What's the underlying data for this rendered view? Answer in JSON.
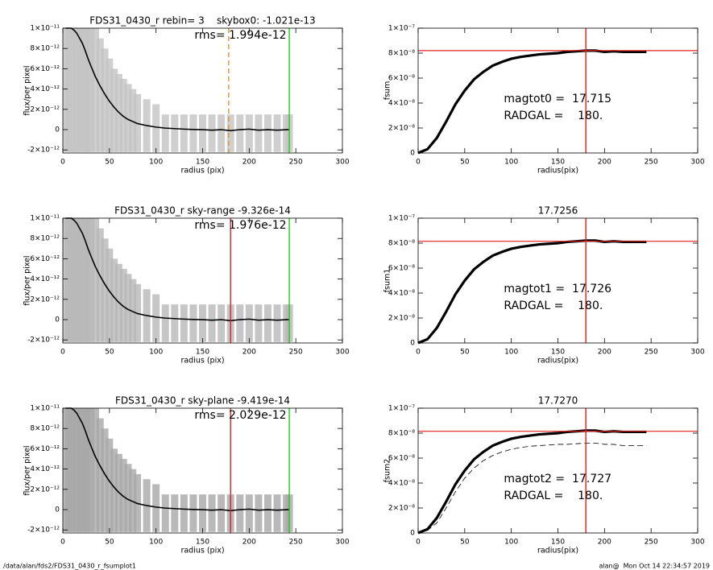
{
  "chart_data": [
    {
      "type": "profile",
      "title": "FDS31_0430_r rebin= 3    skybox0: -1.021e-13",
      "annotations": [
        "rms= 1.994e-12"
      ],
      "xlabel": "radius (pix)",
      "ylabel": "flux/per pixel",
      "xlim": [
        0,
        300
      ],
      "xticks": [
        0,
        50,
        100,
        150,
        200,
        250,
        300
      ],
      "ylim": [
        -2.3e-12,
        1e-11
      ],
      "yticks": [
        {
          "value": -2e-12,
          "label": "-2×10⁻¹²"
        },
        0,
        {
          "value": 2e-12,
          "label": "2×10⁻¹²"
        },
        {
          "value": 4e-12,
          "label": "4×10⁻¹²"
        },
        {
          "value": 6e-12,
          "label": "6×10⁻¹²"
        },
        {
          "value": 8e-12,
          "label": "8×10⁻¹²"
        },
        {
          "value": 1e-11,
          "label": "1×10⁻¹¹"
        }
      ],
      "x": [
        3,
        6,
        9,
        12,
        15,
        18,
        21,
        24,
        27,
        30,
        35,
        40,
        45,
        50,
        55,
        60,
        65,
        70,
        75,
        80,
        90,
        100,
        110,
        120,
        130,
        140,
        150,
        160,
        170,
        180,
        190,
        200,
        210,
        220,
        230,
        240,
        243
      ],
      "profile": [
        1e-11,
        1e-11,
        1e-11,
        9.8e-12,
        9.5e-12,
        9e-12,
        8.5e-12,
        7.8e-12,
        7e-12,
        6.3e-12,
        5.2e-12,
        4.3e-12,
        3.5e-12,
        2.8e-12,
        2.2e-12,
        1.7e-12,
        1.3e-12,
        1e-12,
        8e-13,
        6e-13,
        4e-13,
        2.5e-13,
        1.5e-13,
        1e-13,
        5e-14,
        2e-14,
        0,
        -5e-14,
        0,
        -1e-13,
        0,
        5e-14,
        -5e-14,
        0,
        -5e-14,
        0,
        0
      ],
      "band_upper": [
        1e-11,
        1e-11,
        1e-11,
        1e-11,
        1e-11,
        1e-11,
        1e-11,
        1e-11,
        1e-11,
        1e-11,
        1e-11,
        9e-12,
        8e-12,
        7e-12,
        6e-12,
        5.5e-12,
        5e-12,
        4.5e-12,
        4e-12,
        3.5e-12,
        3e-12,
        2.5e-12,
        1.5e-12,
        1.5e-12,
        1.5e-12,
        1.5e-12,
        1.5e-12,
        1.5e-12,
        1.5e-12,
        1.5e-12,
        1.5e-12,
        1.5e-12,
        1.5e-12,
        1.5e-12,
        1.5e-12,
        1.5e-12,
        1.5e-12
      ],
      "band_lower": [
        -2.2e-12,
        -2.2e-12,
        -2.2e-12,
        -2.2e-12,
        -2.2e-12,
        -2.2e-12,
        -2.2e-12,
        -2.2e-12,
        -2.2e-12,
        -2.2e-12,
        -2.2e-12,
        -2.2e-12,
        -2.2e-12,
        -2.2e-12,
        -2.2e-12,
        -2.2e-12,
        -2.2e-12,
        -2.2e-12,
        -2.2e-12,
        -2.2e-12,
        -2.2e-12,
        -2.2e-12,
        -2.2e-12,
        -2.2e-12,
        -2.2e-12,
        -2.2e-12,
        -2.2e-12,
        -2.2e-12,
        -2.2e-12,
        -2.2e-12,
        -2.2e-12,
        -2.2e-12,
        -2.2e-12,
        -2.2e-12,
        -2.2e-12,
        -2.2e-12,
        -2.2e-12
      ],
      "band_color": "#c4c4c4",
      "color": "#000000",
      "vlines": [
        {
          "value": 178,
          "color": "#e8902a",
          "dashed": true
        },
        {
          "value": 243,
          "color": "#22cc22"
        }
      ]
    },
    {
      "type": "fsum",
      "ylabel": "fsum",
      "xlabel": "radius(pix)",
      "annotations": [
        "magtot0 =  17.715",
        "RADGAL =    180."
      ],
      "xlim": [
        0,
        300
      ],
      "xticks": [
        0,
        50,
        100,
        150,
        200,
        250,
        300
      ],
      "ylim": [
        0,
        1e-07
      ],
      "yticks": [
        0,
        {
          "value": 2e-08,
          "label": "2×10⁻⁸"
        },
        {
          "value": 4e-08,
          "label": "4×10⁻⁸"
        },
        {
          "value": 6e-08,
          "label": "6×10⁻⁸"
        },
        {
          "value": 8e-08,
          "label": "8×10⁻⁸"
        },
        {
          "value": 1e-07,
          "label": "1×10⁻⁷"
        }
      ],
      "x": [
        0,
        10,
        20,
        30,
        40,
        50,
        60,
        70,
        80,
        90,
        100,
        110,
        120,
        130,
        140,
        150,
        160,
        170,
        180,
        190,
        200,
        210,
        220,
        230,
        240,
        245
      ],
      "values": [
        0,
        3e-09,
        1.2e-08,
        2.5e-08,
        3.9e-08,
        5e-08,
        5.9e-08,
        6.5e-08,
        7e-08,
        7.3e-08,
        7.55e-08,
        7.7e-08,
        7.8e-08,
        7.9e-08,
        7.95e-08,
        8e-08,
        8.1e-08,
        8.15e-08,
        8.2e-08,
        8.2e-08,
        8.1e-08,
        8.15e-08,
        8.1e-08,
        8.1e-08,
        8.1e-08,
        8.1e-08
      ],
      "color": "#000000",
      "hline": 8.2e-08,
      "vline": 180,
      "line_color": "#e02020"
    },
    {
      "type": "profile",
      "title": "FDS31_0430_r sky-range -9.326e-14",
      "annotations": [
        "rms= 1.976e-12"
      ],
      "xlabel": "radius (pix)",
      "ylabel": "flux/per pixel",
      "xlim": [
        0,
        300
      ],
      "xticks": [
        0,
        50,
        100,
        150,
        200,
        250,
        300
      ],
      "ylim": [
        -2.3e-12,
        1e-11
      ],
      "yticks": [
        {
          "value": -2e-12,
          "label": "-2×10⁻¹²"
        },
        0,
        {
          "value": 2e-12,
          "label": "2×10⁻¹²"
        },
        {
          "value": 4e-12,
          "label": "4×10⁻¹²"
        },
        {
          "value": 6e-12,
          "label": "6×10⁻¹²"
        },
        {
          "value": 8e-12,
          "label": "8×10⁻¹²"
        },
        {
          "value": 1e-11,
          "label": "1×10⁻¹¹"
        }
      ],
      "x": [
        3,
        6,
        9,
        12,
        15,
        18,
        21,
        24,
        27,
        30,
        35,
        40,
        45,
        50,
        55,
        60,
        65,
        70,
        75,
        80,
        90,
        100,
        110,
        120,
        130,
        140,
        150,
        160,
        170,
        180,
        190,
        200,
        210,
        220,
        230,
        240,
        243
      ],
      "profile": [
        1e-11,
        1e-11,
        1e-11,
        9.8e-12,
        9.5e-12,
        9e-12,
        8.5e-12,
        7.8e-12,
        7e-12,
        6.3e-12,
        5.2e-12,
        4.3e-12,
        3.5e-12,
        2.8e-12,
        2.2e-12,
        1.7e-12,
        1.3e-12,
        1e-12,
        8e-13,
        6e-13,
        4e-13,
        2.5e-13,
        1.5e-13,
        1e-13,
        5e-14,
        2e-14,
        0,
        -5e-14,
        0,
        -1e-13,
        0,
        5e-14,
        -5e-14,
        0,
        -5e-14,
        0,
        0
      ],
      "band_upper": [
        1e-11,
        1e-11,
        1e-11,
        1e-11,
        1e-11,
        1e-11,
        1e-11,
        1e-11,
        1e-11,
        1e-11,
        1e-11,
        9e-12,
        8e-12,
        7e-12,
        6e-12,
        5.5e-12,
        5e-12,
        4.5e-12,
        4e-12,
        3.5e-12,
        3e-12,
        2.5e-12,
        1.5e-12,
        1.5e-12,
        1.5e-12,
        1.5e-12,
        1.5e-12,
        1.5e-12,
        1.5e-12,
        1.5e-12,
        1.5e-12,
        1.5e-12,
        1.5e-12,
        1.5e-12,
        1.5e-12,
        1.5e-12,
        1.5e-12
      ],
      "band_lower": [
        -2.2e-12,
        -2.2e-12,
        -2.2e-12,
        -2.2e-12,
        -2.2e-12,
        -2.2e-12,
        -2.2e-12,
        -2.2e-12,
        -2.2e-12,
        -2.2e-12,
        -2.2e-12,
        -2.2e-12,
        -2.2e-12,
        -2.2e-12,
        -2.2e-12,
        -2.2e-12,
        -2.2e-12,
        -2.2e-12,
        -2.2e-12,
        -2.2e-12,
        -2.2e-12,
        -2.2e-12,
        -2.2e-12,
        -2.2e-12,
        -2.2e-12,
        -2.2e-12,
        -2.2e-12,
        -2.2e-12,
        -2.2e-12,
        -2.2e-12,
        -2.2e-12,
        -2.2e-12,
        -2.2e-12,
        -2.2e-12,
        -2.2e-12,
        -2.2e-12,
        -2.2e-12
      ],
      "band_color": "#b8b8b8",
      "color": "#000000",
      "vlines": [
        {
          "value": 180,
          "color": "#d42020"
        },
        {
          "value": 243,
          "color": "#22cc22"
        }
      ]
    },
    {
      "type": "fsum",
      "title": "17.7256",
      "ylabel": "fsum1",
      "xlabel": "radius(pix)",
      "annotations": [
        "magtot1 =  17.726",
        "RADGAL =    180."
      ],
      "xlim": [
        0,
        300
      ],
      "xticks": [
        0,
        50,
        100,
        150,
        200,
        250,
        300
      ],
      "ylim": [
        0,
        1e-07
      ],
      "yticks": [
        0,
        {
          "value": 2e-08,
          "label": "2×10⁻⁸"
        },
        {
          "value": 4e-08,
          "label": "4×10⁻⁸"
        },
        {
          "value": 6e-08,
          "label": "6×10⁻⁸"
        },
        {
          "value": 8e-08,
          "label": "8×10⁻⁸"
        },
        {
          "value": 1e-07,
          "label": "1×10⁻⁷"
        }
      ],
      "x": [
        0,
        10,
        20,
        30,
        40,
        50,
        60,
        70,
        80,
        90,
        100,
        110,
        120,
        130,
        140,
        150,
        160,
        170,
        180,
        190,
        200,
        210,
        220,
        230,
        240,
        245
      ],
      "values": [
        0,
        3e-09,
        1.2e-08,
        2.5e-08,
        3.9e-08,
        5e-08,
        5.9e-08,
        6.5e-08,
        7e-08,
        7.3e-08,
        7.55e-08,
        7.7e-08,
        7.8e-08,
        7.9e-08,
        7.95e-08,
        8e-08,
        8.1e-08,
        8.15e-08,
        8.2e-08,
        8.2e-08,
        8.1e-08,
        8.15e-08,
        8.1e-08,
        8.1e-08,
        8.1e-08,
        8.1e-08
      ],
      "color": "#000000",
      "hline": 8.15e-08,
      "vline": 180,
      "line_color": "#e02020"
    },
    {
      "type": "profile",
      "title": "FDS31_0430_r sky-plane -9.419e-14",
      "annotations": [
        "rms= 2.029e-12"
      ],
      "xlabel": "radius (pix)",
      "ylabel": "flux/per pixel",
      "xlim": [
        0,
        300
      ],
      "xticks": [
        0,
        50,
        100,
        150,
        200,
        250,
        300
      ],
      "ylim": [
        -2.3e-12,
        1e-11
      ],
      "yticks": [
        {
          "value": -2e-12,
          "label": "-2×10⁻¹²"
        },
        0,
        {
          "value": 2e-12,
          "label": "2×10⁻¹²"
        },
        {
          "value": 4e-12,
          "label": "4×10⁻¹²"
        },
        {
          "value": 6e-12,
          "label": "6×10⁻¹²"
        },
        {
          "value": 8e-12,
          "label": "8×10⁻¹²"
        },
        {
          "value": 1e-11,
          "label": "1×10⁻¹¹"
        }
      ],
      "x": [
        3,
        6,
        9,
        12,
        15,
        18,
        21,
        24,
        27,
        30,
        35,
        40,
        45,
        50,
        55,
        60,
        65,
        70,
        75,
        80,
        90,
        100,
        110,
        120,
        130,
        140,
        150,
        160,
        170,
        180,
        190,
        200,
        210,
        220,
        230,
        240,
        243
      ],
      "profile": [
        1e-11,
        1e-11,
        1e-11,
        9.8e-12,
        9.5e-12,
        9e-12,
        8.5e-12,
        7.8e-12,
        7e-12,
        6.3e-12,
        5.2e-12,
        4.3e-12,
        3.5e-12,
        2.8e-12,
        2.2e-12,
        1.7e-12,
        1.3e-12,
        1e-12,
        8e-13,
        6e-13,
        4e-13,
        2.5e-13,
        1.5e-13,
        1e-13,
        5e-14,
        2e-14,
        0,
        -5e-14,
        0,
        -1e-13,
        0,
        5e-14,
        -5e-14,
        0,
        -5e-14,
        0,
        0
      ],
      "band_upper": [
        1e-11,
        1e-11,
        1e-11,
        1e-11,
        1e-11,
        1e-11,
        1e-11,
        1e-11,
        1e-11,
        1e-11,
        1e-11,
        9e-12,
        8e-12,
        7e-12,
        6e-12,
        5.5e-12,
        5e-12,
        4.5e-12,
        4e-12,
        3.5e-12,
        3e-12,
        2.5e-12,
        1.5e-12,
        1.5e-12,
        1.5e-12,
        1.5e-12,
        1.5e-12,
        1.5e-12,
        1.5e-12,
        1.5e-12,
        1.5e-12,
        1.5e-12,
        1.5e-12,
        1.5e-12,
        1.5e-12,
        1.5e-12,
        1.5e-12
      ],
      "band_lower": [
        -2.2e-12,
        -2.2e-12,
        -2.2e-12,
        -2.2e-12,
        -2.2e-12,
        -2.2e-12,
        -2.2e-12,
        -2.2e-12,
        -2.2e-12,
        -2.2e-12,
        -2.2e-12,
        -2.2e-12,
        -2.2e-12,
        -2.2e-12,
        -2.2e-12,
        -2.2e-12,
        -2.2e-12,
        -2.2e-12,
        -2.2e-12,
        -2.2e-12,
        -2.2e-12,
        -2.2e-12,
        -2.2e-12,
        -2.2e-12,
        -2.2e-12,
        -2.2e-12,
        -2.2e-12,
        -2.2e-12,
        -2.2e-12,
        -2.2e-12,
        -2.2e-12,
        -2.2e-12,
        -2.2e-12,
        -2.2e-12,
        -2.2e-12,
        -2.2e-12,
        -2.2e-12
      ],
      "band_color": "#a8a8a8",
      "color": "#000000",
      "vlines": [
        {
          "value": 180,
          "color": "#d42020"
        },
        {
          "value": 243,
          "color": "#22cc22"
        }
      ]
    },
    {
      "type": "fsum",
      "title": "17.7270",
      "ylabel": "fsum2",
      "xlabel": "radius(pix)",
      "annotations": [
        "magtot2 =  17.727",
        "RADGAL =    180."
      ],
      "xlim": [
        0,
        300
      ],
      "xticks": [
        0,
        50,
        100,
        150,
        200,
        250,
        300
      ],
      "ylim": [
        0,
        1e-07
      ],
      "yticks": [
        0,
        {
          "value": 2e-08,
          "label": "2×10⁻⁸"
        },
        {
          "value": 4e-08,
          "label": "4×10⁻⁸"
        },
        {
          "value": 6e-08,
          "label": "6×10⁻⁸"
        },
        {
          "value": 8e-08,
          "label": "8×10⁻⁸"
        },
        {
          "value": 1e-07,
          "label": "1×10⁻⁷"
        }
      ],
      "x": [
        0,
        10,
        20,
        30,
        40,
        50,
        60,
        70,
        80,
        90,
        100,
        110,
        120,
        130,
        140,
        150,
        160,
        170,
        180,
        190,
        200,
        210,
        220,
        230,
        240,
        245
      ],
      "values": [
        0,
        3e-09,
        1.2e-08,
        2.5e-08,
        3.9e-08,
        5e-08,
        5.9e-08,
        6.5e-08,
        7e-08,
        7.3e-08,
        7.55e-08,
        7.7e-08,
        7.8e-08,
        7.9e-08,
        7.95e-08,
        8e-08,
        8.1e-08,
        8.15e-08,
        8.2e-08,
        8.2e-08,
        8.1e-08,
        8.15e-08,
        8.1e-08,
        8.1e-08,
        8.1e-08,
        8.1e-08
      ],
      "dashed_values": [
        0,
        2e-09,
        8e-09,
        2e-08,
        3.3e-08,
        4.4e-08,
        5.2e-08,
        5.8e-08,
        6.2e-08,
        6.5e-08,
        6.7e-08,
        6.85e-08,
        6.95e-08,
        7e-08,
        7.05e-08,
        7.1e-08,
        7.1e-08,
        7.15e-08,
        7.2e-08,
        7.2e-08,
        7.1e-08,
        7.1e-08,
        7e-08,
        7e-08,
        7e-08,
        7e-08
      ],
      "color": "#000000",
      "hline": 8.15e-08,
      "vline": 180,
      "line_color": "#e02020"
    }
  ],
  "footer": {
    "left": "/data/alan/fds2/FDS31_0430_r_fsumplot1",
    "right": "alan@  Mon Oct 14 22:34:57 2019"
  }
}
